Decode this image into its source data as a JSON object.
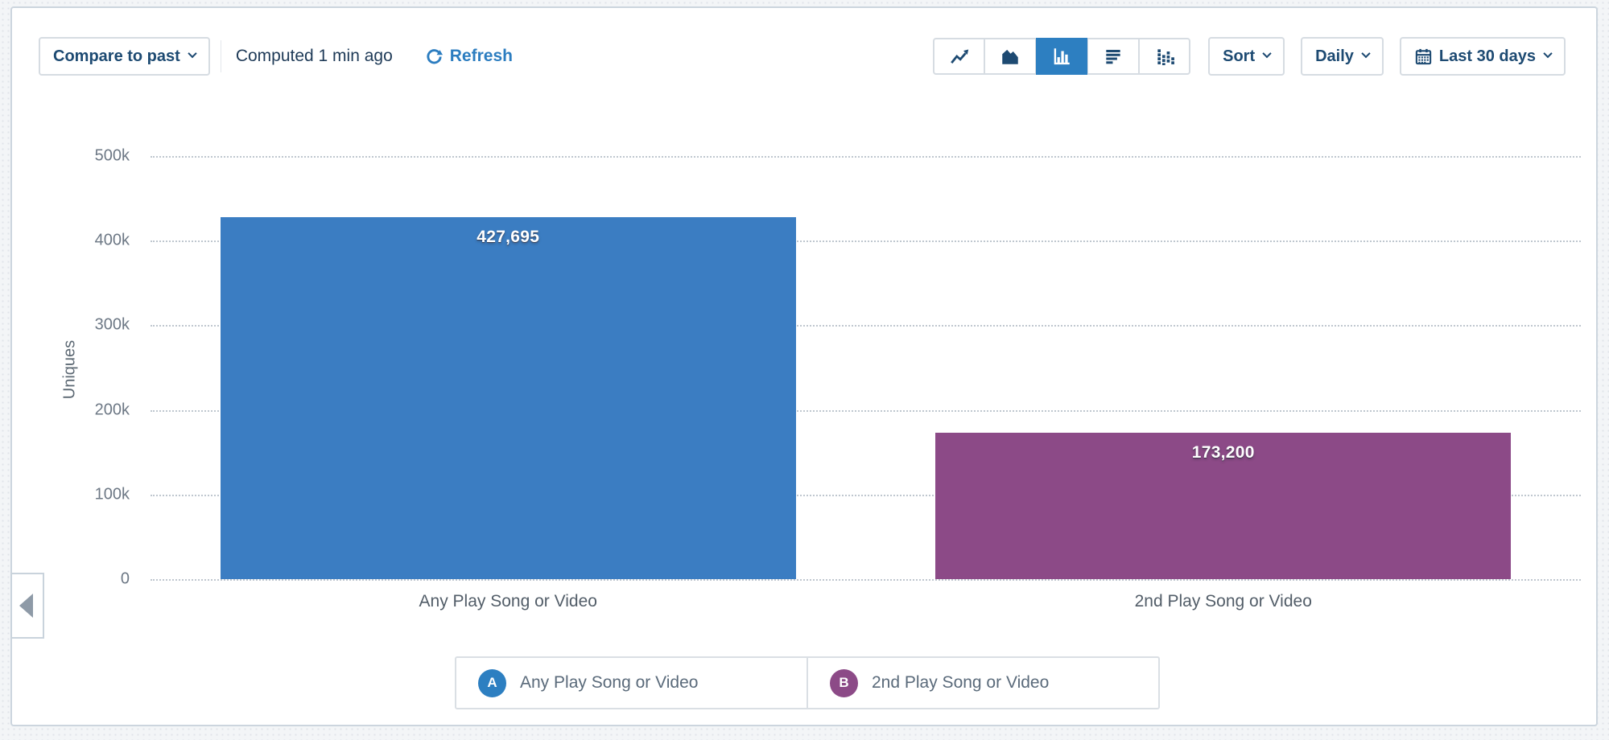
{
  "toolbar": {
    "compare_label": "Compare to past",
    "computed_text": "Computed 1 min ago",
    "refresh_label": "Refresh",
    "chart_type_buttons": [
      {
        "name": "line-chart",
        "selected": false
      },
      {
        "name": "area-chart",
        "selected": false
      },
      {
        "name": "bar-chart",
        "selected": true
      },
      {
        "name": "horizontal-bar-chart",
        "selected": false
      },
      {
        "name": "distribution-chart",
        "selected": false
      }
    ],
    "sort_label": "Sort",
    "interval_label": "Daily",
    "date_range_label": "Last 30 days"
  },
  "chart_data": {
    "type": "bar",
    "title": "",
    "ylabel": "Uniques",
    "xlabel": "",
    "categories": [
      "Any Play Song or Video",
      "2nd Play Song or Video"
    ],
    "values": [
      427695,
      173200
    ],
    "value_labels": [
      "427,695",
      "173,200"
    ],
    "bar_colors": [
      "#3b7dc2",
      "#8c4a87"
    ],
    "ylim": [
      0,
      500000
    ],
    "ytick_labels": [
      "500k",
      "400k",
      "300k",
      "200k",
      "100k",
      "0"
    ],
    "grid": "horizontal-dotted",
    "legend_position": "bottom"
  },
  "legend": {
    "items": [
      {
        "marker": "A",
        "label": "Any Play Song or Video",
        "color": "#2d7fc1"
      },
      {
        "marker": "B",
        "label": "2nd Play Song or Video",
        "color": "#8c4a87"
      }
    ]
  },
  "colors": {
    "accent_blue": "#2d7fc1",
    "bar_blue": "#3b7dc2",
    "bar_purple": "#8c4a87",
    "navy_text": "#1d4a72",
    "link_blue": "#2c7dc0",
    "axis_text": "#6d7885",
    "panel_border": "#ccd5de"
  }
}
